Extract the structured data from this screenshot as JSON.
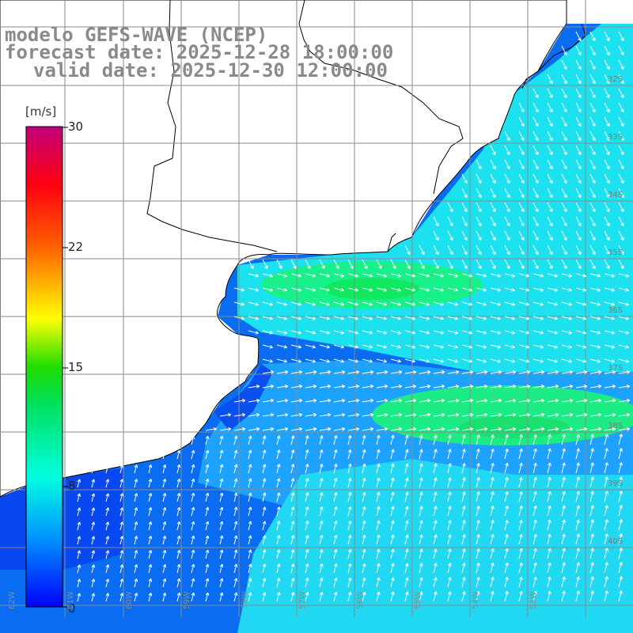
{
  "title": {
    "model": "modelo GEFS-WAVE (NCEP)",
    "forecast": "forecast date: 2025-12-28 18:00:00",
    "valid": "valid date: 2025-12-30 12:00:00"
  },
  "colorbar": {
    "unit": "[m/s]",
    "ticks": [
      "30",
      "22",
      "15",
      "8",
      "0"
    ],
    "tick_values": [
      30,
      22,
      15,
      8,
      0
    ],
    "min": 0,
    "max": 30,
    "stops": [
      "#0000ff",
      "#00aaff",
      "#00ffd0",
      "#00dd00",
      "#ffff00",
      "#ff8800",
      "#ff0000",
      "#c0007a"
    ]
  },
  "map": {
    "lat_labels": [
      "32S",
      "33S",
      "34S",
      "35S",
      "36S",
      "37S",
      "38S",
      "39S",
      "40S"
    ],
    "lon_labels": [
      "62W",
      "61W",
      "60W",
      "59W",
      "58W",
      "57W",
      "56W",
      "55W",
      "54W",
      "53W"
    ],
    "land_color": "#ffffff",
    "grid_color": "#8a8a8a",
    "coast_color": "#000000",
    "arrow_color": "#ffffff"
  }
}
